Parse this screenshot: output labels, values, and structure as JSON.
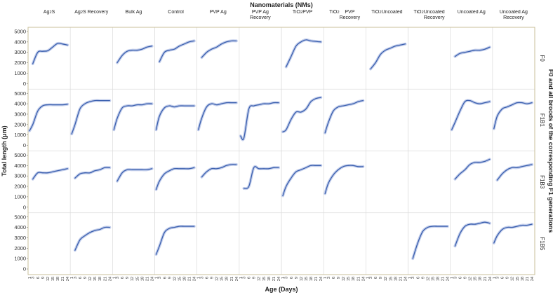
{
  "chart_data": {
    "type": "line",
    "title": "Nanomaterials (NMs)",
    "xlabel": "Age (Days)",
    "ylabel": "Total length (μm)",
    "right_label": "F0 and all broods of the corresponding F1 generations",
    "ylim": [
      0,
      5000
    ],
    "y_ticks": [
      0,
      1000,
      2000,
      3000,
      4000,
      5000
    ],
    "x_ticks": [
      1,
      3,
      6,
      9,
      12,
      15,
      18,
      21,
      24
    ],
    "columns": [
      {
        "html": "Ag<sub>2</sub>S"
      },
      {
        "html": "Ag<sub>2</sub>S Recovery"
      },
      {
        "html": "Bulk Ag"
      },
      {
        "html": "Control"
      },
      {
        "html": "PVP Ag"
      },
      {
        "html": "PVP Ag<br>Recovery"
      },
      {
        "html": "TiO<sub>2</sub> PVP"
      },
      {
        "html": "TiO<sub>2</sub> PVP<br>Recovery"
      },
      {
        "html": "TiO<sub>2</sub> Uncoated"
      },
      {
        "html": "TiO<sub>2</sub> Uncoated<br>Recovery"
      },
      {
        "html": "Uncoated Ag"
      },
      {
        "html": "Uncoated Ag<br>Recovery"
      }
    ],
    "rows": [
      "F0",
      "F1B1",
      "F1B3",
      "F1B5"
    ],
    "series_color": "#3a5fae",
    "band_color": "#b9c6e8",
    "series": [
      {
        "row": "F0",
        "col": 0,
        "x": [
          3,
          6,
          9,
          12,
          15,
          18,
          21,
          24
        ],
        "y": [
          1900,
          3000,
          3100,
          3150,
          3500,
          3850,
          3800,
          3700
        ]
      },
      {
        "row": "F0",
        "col": 2,
        "x": [
          3,
          6,
          9,
          12,
          15,
          18,
          21,
          24
        ],
        "y": [
          2000,
          2700,
          3100,
          3200,
          3200,
          3300,
          3500,
          3600
        ]
      },
      {
        "row": "F0",
        "col": 3,
        "x": [
          3,
          6,
          9,
          12,
          15,
          18,
          21,
          24
        ],
        "y": [
          2100,
          3000,
          3200,
          3300,
          3600,
          3800,
          4000,
          4100
        ]
      },
      {
        "row": "F0",
        "col": 4,
        "x": [
          3,
          6,
          9,
          12,
          15,
          18,
          21,
          24
        ],
        "y": [
          2500,
          3000,
          3300,
          3500,
          3800,
          4000,
          4100,
          4100
        ]
      },
      {
        "row": "F0",
        "col": 6,
        "x": [
          3,
          6,
          9,
          12,
          15,
          18,
          21,
          24
        ],
        "y": [
          1600,
          2600,
          3600,
          4000,
          4200,
          4100,
          4050,
          4000
        ]
      },
      {
        "row": "F0",
        "col": 8,
        "x": [
          3,
          6,
          9,
          12,
          15,
          18,
          21,
          24
        ],
        "y": [
          1400,
          2000,
          2800,
          3200,
          3400,
          3600,
          3700,
          3800
        ]
      },
      {
        "row": "F0",
        "col": 10,
        "x": [
          3,
          6,
          9,
          12,
          15,
          18,
          21,
          24
        ],
        "y": [
          2600,
          2900,
          3000,
          3100,
          3200,
          3200,
          3300,
          3500
        ]
      },
      {
        "row": "F1B1",
        "col": 0,
        "x": [
          1,
          3,
          6,
          9,
          12,
          15,
          18,
          21,
          24
        ],
        "y": [
          1400,
          2000,
          3300,
          3800,
          3900,
          3900,
          3900,
          3900,
          3950
        ]
      },
      {
        "row": "F1B1",
        "col": 1,
        "x": [
          1,
          3,
          6,
          9,
          12,
          15,
          18,
          21,
          24
        ],
        "y": [
          1100,
          2000,
          3500,
          4000,
          4200,
          4300,
          4300,
          4300,
          4300
        ]
      },
      {
        "row": "F1B1",
        "col": 2,
        "x": [
          1,
          3,
          6,
          9,
          12,
          15,
          18,
          21,
          24
        ],
        "y": [
          1500,
          2600,
          3600,
          3800,
          3800,
          3900,
          3900,
          4000,
          4000
        ]
      },
      {
        "row": "F1B1",
        "col": 3,
        "x": [
          1,
          3,
          6,
          9,
          12,
          15,
          18,
          21,
          24
        ],
        "y": [
          1500,
          2800,
          3600,
          3800,
          3700,
          3800,
          3800,
          3800,
          3800
        ]
      },
      {
        "row": "F1B1",
        "col": 4,
        "x": [
          1,
          3,
          6,
          9,
          12,
          15,
          18,
          21,
          24
        ],
        "y": [
          1500,
          2600,
          3700,
          4000,
          3900,
          4000,
          4100,
          4100,
          4100
        ]
      },
      {
        "row": "F1B1",
        "col": 5,
        "x": [
          1,
          3,
          6,
          9,
          12,
          15,
          18,
          21,
          24
        ],
        "y": [
          900,
          700,
          3500,
          3800,
          3900,
          4000,
          4000,
          4100,
          4100
        ]
      },
      {
        "row": "F1B1",
        "col": 6,
        "x": [
          1,
          3,
          6,
          9,
          12,
          15,
          18,
          21,
          24
        ],
        "y": [
          1300,
          1500,
          2500,
          3200,
          3200,
          3500,
          4200,
          4500,
          4600
        ]
      },
      {
        "row": "F1B1",
        "col": 7,
        "x": [
          1,
          3,
          6,
          9,
          12,
          15,
          18,
          21,
          24
        ],
        "y": [
          1200,
          2200,
          3300,
          3700,
          3800,
          3900,
          4000,
          4200,
          4300
        ]
      },
      {
        "row": "F1B1",
        "col": 10,
        "x": [
          1,
          3,
          6,
          9,
          12,
          15,
          18,
          21,
          24
        ],
        "y": [
          1500,
          2200,
          3300,
          4200,
          4300,
          4100,
          4000,
          4100,
          4200
        ]
      },
      {
        "row": "F1B1",
        "col": 11,
        "x": [
          1,
          3,
          6,
          9,
          12,
          15,
          18,
          21,
          24
        ],
        "y": [
          1600,
          2800,
          3500,
          3700,
          3900,
          4100,
          4100,
          4000,
          4100
        ]
      },
      {
        "row": "F1B3",
        "col": 0,
        "x": [
          3,
          6,
          9,
          12,
          15,
          18,
          21,
          24
        ],
        "y": [
          2700,
          3300,
          3300,
          3300,
          3400,
          3500,
          3600,
          3700
        ]
      },
      {
        "row": "F1B3",
        "col": 1,
        "x": [
          3,
          6,
          9,
          12,
          15,
          18,
          21,
          24
        ],
        "y": [
          2800,
          3200,
          3300,
          3300,
          3500,
          3600,
          3800,
          3800
        ]
      },
      {
        "row": "F1B3",
        "col": 2,
        "x": [
          3,
          6,
          9,
          12,
          15,
          18,
          21,
          24
        ],
        "y": [
          2500,
          3300,
          3600,
          3600,
          3600,
          3600,
          3600,
          3700
        ]
      },
      {
        "row": "F1B3",
        "col": 3,
        "x": [
          1,
          3,
          6,
          9,
          12,
          15,
          18,
          21,
          24
        ],
        "y": [
          1700,
          2500,
          3200,
          3500,
          3700,
          3700,
          3700,
          3700,
          3800
        ]
      },
      {
        "row": "F1B3",
        "col": 4,
        "x": [
          3,
          6,
          9,
          12,
          15,
          18,
          21,
          24
        ],
        "y": [
          2900,
          3400,
          3700,
          3700,
          3800,
          4000,
          4100,
          4100
        ]
      },
      {
        "row": "F1B3",
        "col": 5,
        "x": [
          3,
          6,
          9,
          12,
          15,
          18,
          21,
          24
        ],
        "y": [
          1800,
          2000,
          3800,
          3700,
          3700,
          3700,
          3800,
          3800
        ]
      },
      {
        "row": "F1B3",
        "col": 6,
        "x": [
          1,
          3,
          6,
          9,
          12,
          15,
          18,
          21,
          24
        ],
        "y": [
          1100,
          2000,
          2800,
          3400,
          3600,
          3800,
          4000,
          4000,
          4000
        ]
      },
      {
        "row": "F1B3",
        "col": 7,
        "x": [
          1,
          3,
          6,
          9,
          12,
          15,
          18,
          21,
          24
        ],
        "y": [
          1300,
          2300,
          3100,
          3600,
          3900,
          4000,
          4000,
          3900,
          3900
        ]
      },
      {
        "row": "F1B3",
        "col": 10,
        "x": [
          3,
          6,
          9,
          12,
          15,
          18,
          21,
          24
        ],
        "y": [
          2700,
          3200,
          3600,
          4100,
          4300,
          4300,
          4400,
          4600
        ]
      },
      {
        "row": "F1B3",
        "col": 11,
        "x": [
          3,
          6,
          9,
          12,
          15,
          18,
          21,
          24
        ],
        "y": [
          2600,
          3200,
          3600,
          3800,
          3800,
          3900,
          4000,
          4100
        ]
      },
      {
        "row": "F1B5",
        "col": 1,
        "x": [
          3,
          6,
          9,
          12,
          15,
          18,
          21,
          24
        ],
        "y": [
          1800,
          2800,
          3200,
          3500,
          3700,
          3800,
          4000,
          4000
        ]
      },
      {
        "row": "F1B5",
        "col": 3,
        "x": [
          1,
          3,
          6,
          9,
          12,
          15,
          18,
          21,
          24
        ],
        "y": [
          1400,
          2200,
          3500,
          3900,
          4000,
          4100,
          4100,
          4100,
          4100
        ]
      },
      {
        "row": "F1B5",
        "col": 9,
        "x": [
          3,
          6,
          9,
          12,
          15,
          18,
          21,
          24
        ],
        "y": [
          1000,
          2500,
          3600,
          4000,
          4100,
          4100,
          4100,
          4100
        ]
      },
      {
        "row": "F1B5",
        "col": 10,
        "x": [
          3,
          6,
          9,
          12,
          15,
          18,
          21,
          24
        ],
        "y": [
          2200,
          3400,
          4100,
          4300,
          4300,
          4400,
          4500,
          4400
        ]
      },
      {
        "row": "F1B5",
        "col": 11,
        "x": [
          1,
          3,
          6,
          9,
          12,
          15,
          18,
          21,
          24
        ],
        "y": [
          2500,
          3200,
          3800,
          4000,
          4000,
          4100,
          4200,
          4200,
          4300
        ]
      }
    ]
  }
}
